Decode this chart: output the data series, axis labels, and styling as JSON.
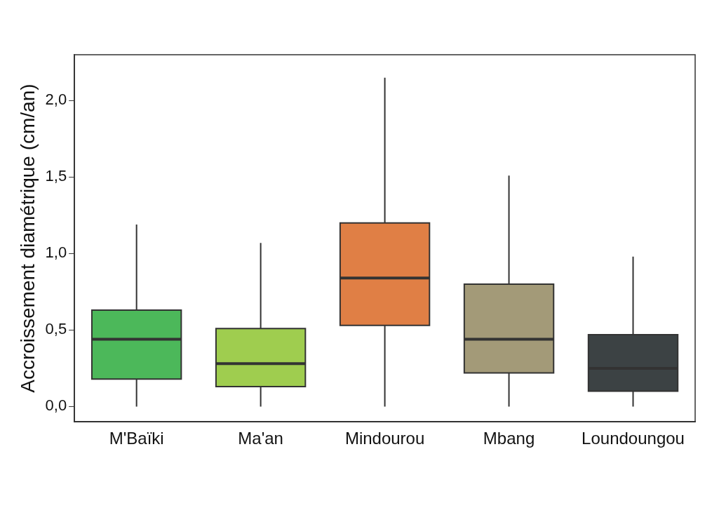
{
  "chart_data": {
    "type": "box",
    "ylabel": "Accroissement diamétrique (cm/an)",
    "categories": [
      "M'Baïki",
      "Ma'an",
      "Mindourou",
      "Mbang",
      "Loundoungou"
    ],
    "colors": [
      "#4cb85a",
      "#9fcd4f",
      "#e07f45",
      "#a39a78",
      "#3c4244"
    ],
    "boxes": [
      {
        "low": 0,
        "q1": 0.18,
        "median": 0.44,
        "q3": 0.63,
        "high": 1.19
      },
      {
        "low": 0,
        "q1": 0.13,
        "median": 0.28,
        "q3": 0.51,
        "high": 1.07
      },
      {
        "low": 0,
        "q1": 0.53,
        "median": 0.84,
        "q3": 1.2,
        "high": 2.15
      },
      {
        "low": 0,
        "q1": 0.22,
        "median": 0.44,
        "q3": 0.8,
        "high": 1.51
      },
      {
        "low": 0,
        "q1": 0.1,
        "median": 0.25,
        "q3": 0.47,
        "high": 0.98
      }
    ],
    "ylim": [
      -0.1,
      2.3
    ],
    "yticks": [
      {
        "value": 0,
        "label": "0,0"
      },
      {
        "value": 0.5,
        "label": "0,5"
      },
      {
        "value": 1,
        "label": "1,0"
      },
      {
        "value": 1.5,
        "label": "1,5"
      },
      {
        "value": 2,
        "label": "2,0"
      }
    ],
    "grid": false,
    "legend": false
  }
}
